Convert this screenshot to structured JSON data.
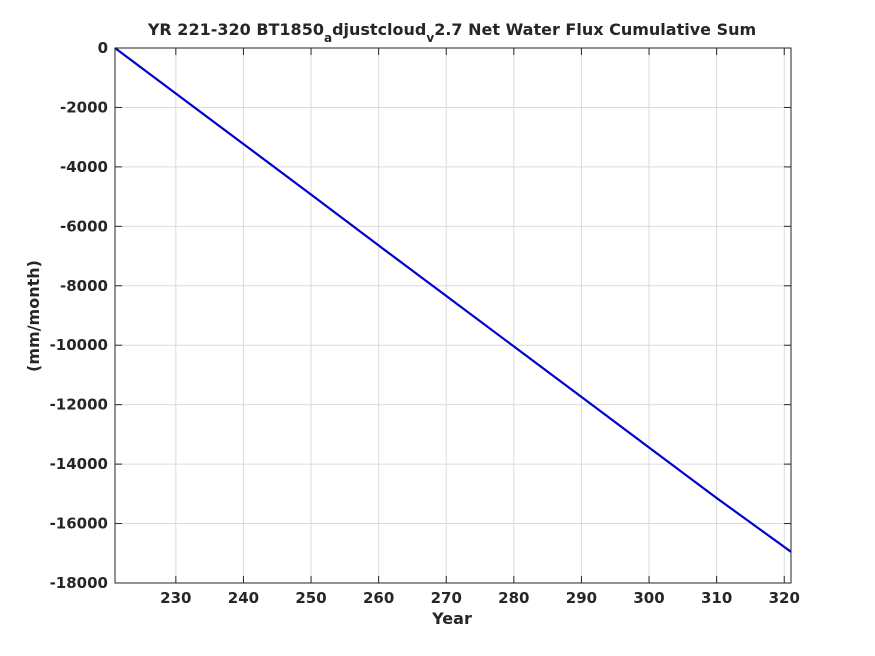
{
  "chart_data": {
    "type": "line",
    "title": "YR 221-320 BT1850",
    "title_parts": [
      "a",
      "djustcloud",
      "v",
      "2.7 Net Water Flux Cumulative Sum"
    ],
    "xlabel": "Year",
    "ylabel": "(mm/month)",
    "xlim": [
      221,
      321
    ],
    "ylim": [
      -18000,
      0
    ],
    "xticks": [
      230,
      240,
      250,
      260,
      270,
      280,
      290,
      300,
      310,
      320
    ],
    "yticks": [
      0,
      -2000,
      -4000,
      -6000,
      -8000,
      -10000,
      -12000,
      -14000,
      -16000,
      -18000
    ],
    "grid": true,
    "series": [
      {
        "color": "#0000cc",
        "x": [
          221,
          230,
          240,
          250,
          260,
          270,
          280,
          290,
          300,
          310,
          321
        ],
        "y": [
          0,
          -1530,
          -3230,
          -4930,
          -6640,
          -8340,
          -10040,
          -11740,
          -13440,
          -15140,
          -16950
        ]
      }
    ]
  }
}
